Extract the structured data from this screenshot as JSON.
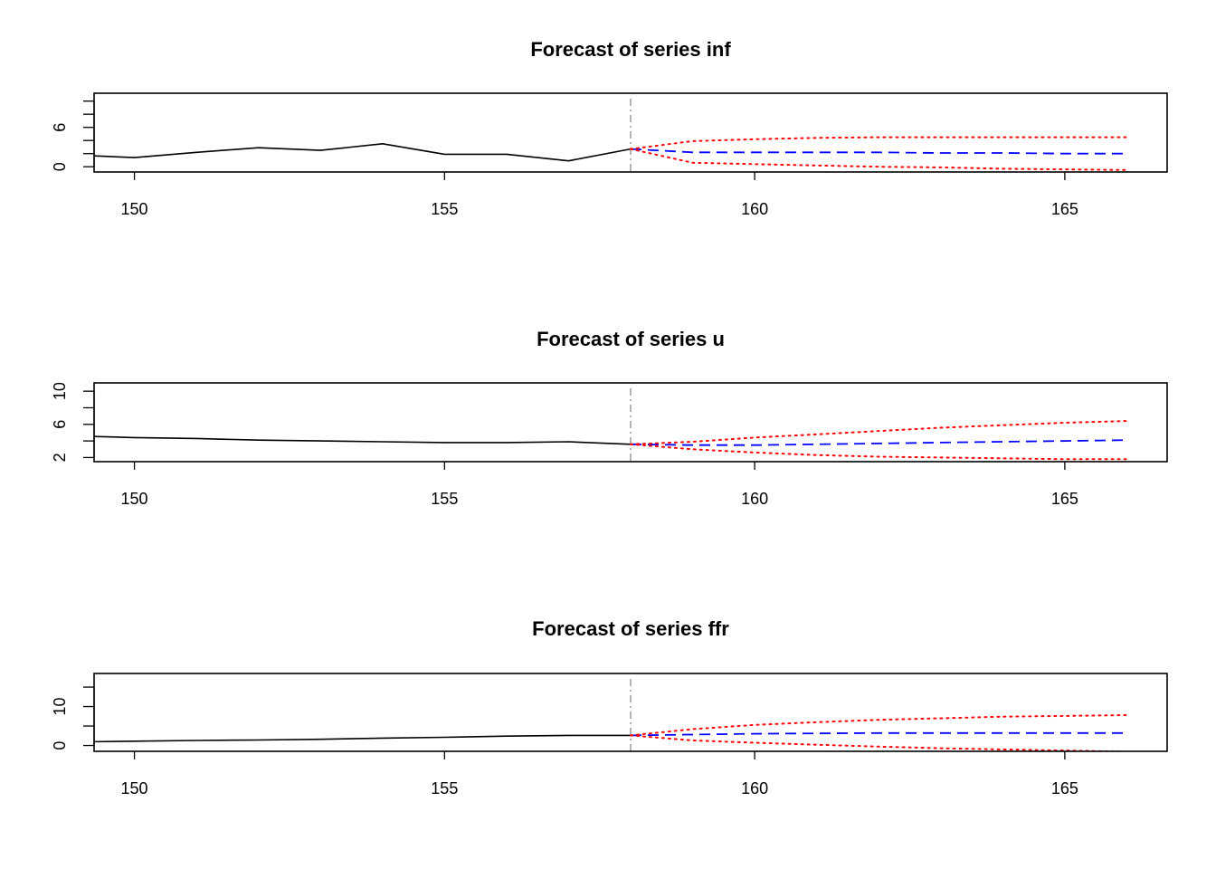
{
  "chart_data": [
    {
      "type": "line",
      "title": "Forecast of series inf",
      "xlabel": "",
      "ylabel": "",
      "xlim": [
        149.35,
        166.65
      ],
      "ylim": [
        -0.8,
        11.2
      ],
      "xticks": [
        150,
        155,
        160,
        165
      ],
      "yticks": [
        0,
        2,
        4,
        6,
        8,
        10
      ],
      "ytick_labels": [
        "0",
        "",
        "",
        "6",
        "",
        ""
      ],
      "forecast_origin": 158,
      "grid": false,
      "legend": "none",
      "series": [
        {
          "role": "observed",
          "color": "#000000",
          "style": "solid",
          "x": [
            149,
            150,
            151,
            152,
            153,
            154,
            155,
            156,
            157,
            158
          ],
          "y": [
            1.8,
            1.4,
            2.2,
            2.9,
            2.5,
            3.5,
            1.9,
            1.9,
            0.9,
            2.7
          ]
        },
        {
          "role": "forecast",
          "color": "#0000ff",
          "style": "dashed",
          "x": [
            158,
            159,
            160,
            161,
            162,
            163,
            164,
            165,
            166
          ],
          "y": [
            2.7,
            2.2,
            2.2,
            2.2,
            2.2,
            2.1,
            2.1,
            2.0,
            2.0
          ]
        },
        {
          "role": "upper",
          "color": "#ff0000",
          "style": "dotted",
          "x": [
            158,
            159,
            160,
            161,
            162,
            163,
            164,
            165,
            166
          ],
          "y": [
            2.7,
            3.9,
            4.2,
            4.4,
            4.5,
            4.5,
            4.5,
            4.5,
            4.5
          ]
        },
        {
          "role": "lower",
          "color": "#ff0000",
          "style": "dotted",
          "x": [
            158,
            159,
            160,
            161,
            162,
            163,
            164,
            165,
            166
          ],
          "y": [
            2.7,
            0.6,
            0.4,
            0.2,
            0.0,
            -0.1,
            -0.3,
            -0.4,
            -0.5
          ]
        }
      ]
    },
    {
      "type": "line",
      "title": "Forecast of series u",
      "xlabel": "",
      "ylabel": "",
      "xlim": [
        149.35,
        166.65
      ],
      "ylim": [
        1.5,
        11.0
      ],
      "xticks": [
        150,
        155,
        160,
        165
      ],
      "yticks": [
        2,
        4,
        6,
        8,
        10
      ],
      "ytick_labels": [
        "2",
        "",
        "6",
        "",
        "10"
      ],
      "forecast_origin": 158,
      "grid": false,
      "legend": "none",
      "series": [
        {
          "role": "observed",
          "color": "#000000",
          "style": "solid",
          "x": [
            149,
            150,
            151,
            152,
            153,
            154,
            155,
            156,
            157,
            158
          ],
          "y": [
            4.6,
            4.4,
            4.3,
            4.1,
            4.0,
            3.9,
            3.8,
            3.8,
            3.9,
            3.6
          ]
        },
        {
          "role": "forecast",
          "color": "#0000ff",
          "style": "dashed",
          "x": [
            158,
            159,
            160,
            161,
            162,
            163,
            164,
            165,
            166
          ],
          "y": [
            3.6,
            3.5,
            3.5,
            3.6,
            3.7,
            3.8,
            3.9,
            4.0,
            4.1
          ]
        },
        {
          "role": "upper",
          "color": "#ff0000",
          "style": "dotted",
          "x": [
            158,
            159,
            160,
            161,
            162,
            163,
            164,
            165,
            166
          ],
          "y": [
            3.6,
            3.9,
            4.4,
            4.8,
            5.2,
            5.6,
            5.9,
            6.2,
            6.4
          ]
        },
        {
          "role": "lower",
          "color": "#ff0000",
          "style": "dotted",
          "x": [
            158,
            159,
            160,
            161,
            162,
            163,
            164,
            165,
            166
          ],
          "y": [
            3.6,
            3.0,
            2.6,
            2.3,
            2.1,
            2.0,
            1.9,
            1.8,
            1.8
          ]
        }
      ]
    },
    {
      "type": "line",
      "title": "Forecast of series ffr",
      "xlabel": "",
      "ylabel": "",
      "xlim": [
        149.35,
        166.65
      ],
      "ylim": [
        -1.5,
        18.5
      ],
      "xticks": [
        150,
        155,
        160,
        165
      ],
      "yticks": [
        0,
        5,
        10,
        15
      ],
      "ytick_labels": [
        "0",
        "",
        "10",
        ""
      ],
      "forecast_origin": 158,
      "grid": false,
      "legend": "none",
      "series": [
        {
          "role": "observed",
          "color": "#000000",
          "style": "solid",
          "x": [
            149,
            150,
            151,
            152,
            153,
            154,
            155,
            156,
            157,
            158
          ],
          "y": [
            0.9,
            1.1,
            1.3,
            1.4,
            1.6,
            1.9,
            2.1,
            2.4,
            2.6,
            2.6
          ]
        },
        {
          "role": "forecast",
          "color": "#0000ff",
          "style": "dashed",
          "x": [
            158,
            159,
            160,
            161,
            162,
            163,
            164,
            165,
            166
          ],
          "y": [
            2.6,
            2.8,
            3.0,
            3.1,
            3.2,
            3.2,
            3.2,
            3.2,
            3.2
          ]
        },
        {
          "role": "upper",
          "color": "#ff0000",
          "style": "dotted",
          "x": [
            158,
            159,
            160,
            161,
            162,
            163,
            164,
            165,
            166
          ],
          "y": [
            2.6,
            4.2,
            5.3,
            6.0,
            6.6,
            7.0,
            7.4,
            7.6,
            7.8
          ]
        },
        {
          "role": "lower",
          "color": "#ff0000",
          "style": "dotted",
          "x": [
            158,
            159,
            160,
            161,
            162,
            163,
            164,
            165,
            166
          ],
          "y": [
            2.6,
            1.3,
            0.7,
            0.2,
            -0.3,
            -0.7,
            -1.0,
            -1.3,
            -1.6
          ]
        }
      ]
    }
  ]
}
